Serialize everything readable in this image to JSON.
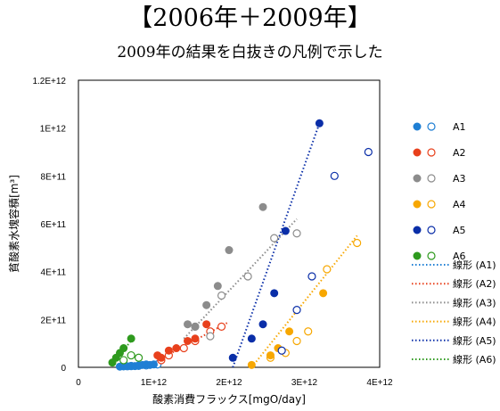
{
  "title": "【2006年＋2009年】",
  "subtitle": "2009年の結果を白抜きの凡例で示した",
  "chart_data": {
    "type": "scatter",
    "xlabel": "酸素消費フラックス[mgO/day]",
    "ylabel": "貧酸素水塊容積[m³]",
    "xlim": [
      0,
      4000000000000.0
    ],
    "ylim": [
      0,
      1200000000000.0
    ],
    "x_ticks": [
      {
        "value": 0,
        "label": "0"
      },
      {
        "value": 1000000000000.0,
        "label": "1E+12"
      },
      {
        "value": 2000000000000.0,
        "label": "2E+12"
      },
      {
        "value": 3000000000000.0,
        "label": "3E+12"
      },
      {
        "value": 4000000000000.0,
        "label": "4E+12"
      }
    ],
    "y_ticks": [
      {
        "value": 0,
        "label": "0"
      },
      {
        "value": 200000000000.0,
        "label": "2E+11"
      },
      {
        "value": 400000000000.0,
        "label": "4E+11"
      },
      {
        "value": 600000000000.0,
        "label": "6E+11"
      },
      {
        "value": 800000000000.0,
        "label": "8E+11"
      },
      {
        "value": 1000000000000.0,
        "label": "1E+12"
      },
      {
        "value": 1200000000000.0,
        "label": "1.2E+12"
      }
    ],
    "grid": false,
    "legend_position": "right",
    "series": [
      {
        "name": "A1",
        "color": "#1f7fd4",
        "filled": [
          [
            550000000000.0,
            3000000000.0
          ],
          [
            600000000000.0,
            5000000000.0
          ],
          [
            650000000000.0,
            4000000000.0
          ],
          [
            700000000000.0,
            6000000000.0
          ],
          [
            750000000000.0,
            5000000000.0
          ],
          [
            800000000000.0,
            8000000000.0
          ],
          [
            850000000000.0,
            10000000000.0
          ],
          [
            900000000000.0,
            12000000000.0
          ],
          [
            950000000000.0,
            10000000000.0
          ],
          [
            1000000000000.0,
            12000000000.0
          ]
        ],
        "open": [
          [
            600000000000.0,
            4000000000.0
          ],
          [
            700000000000.0,
            5000000000.0
          ],
          [
            800000000000.0,
            6000000000.0
          ],
          [
            900000000000.0,
            8000000000.0
          ],
          [
            1050000000000.0,
            12000000000.0
          ]
        ],
        "trend_label": "線形 (A1)",
        "trend": [
          [
            500000000000.0,
            0.0
          ],
          [
            1100000000000.0,
            15000000000.0
          ]
        ]
      },
      {
        "name": "A2",
        "color": "#e8401c",
        "filled": [
          [
            1050000000000.0,
            50000000000.0
          ],
          [
            1100000000000.0,
            40000000000.0
          ],
          [
            1200000000000.0,
            70000000000.0
          ],
          [
            1300000000000.0,
            80000000000.0
          ],
          [
            1450000000000.0,
            110000000000.0
          ],
          [
            1550000000000.0,
            120000000000.0
          ],
          [
            1700000000000.0,
            180000000000.0
          ]
        ],
        "open": [
          [
            1100000000000.0,
            30000000000.0
          ],
          [
            1200000000000.0,
            50000000000.0
          ],
          [
            1400000000000.0,
            80000000000.0
          ],
          [
            1550000000000.0,
            110000000000.0
          ],
          [
            1750000000000.0,
            150000000000.0
          ],
          [
            1900000000000.0,
            170000000000.0
          ]
        ],
        "trend_label": "線形 (A2)",
        "trend": [
          [
            1000000000000.0,
            20000000000.0
          ],
          [
            2000000000000.0,
            190000000000.0
          ]
        ]
      },
      {
        "name": "A3",
        "color": "#8c8c8c",
        "filled": [
          [
            1450000000000.0,
            180000000000.0
          ],
          [
            1550000000000.0,
            170000000000.0
          ],
          [
            1700000000000.0,
            260000000000.0
          ],
          [
            1850000000000.0,
            340000000000.0
          ],
          [
            2000000000000.0,
            490000000000.0
          ],
          [
            2450000000000.0,
            670000000000.0
          ]
        ],
        "open": [
          [
            1550000000000.0,
            170000000000.0
          ],
          [
            1750000000000.0,
            130000000000.0
          ],
          [
            1900000000000.0,
            300000000000.0
          ],
          [
            2250000000000.0,
            380000000000.0
          ],
          [
            2600000000000.0,
            540000000000.0
          ],
          [
            2900000000000.0,
            560000000000.0
          ]
        ],
        "trend_label": "線形 (A3)",
        "trend": [
          [
            1400000000000.0,
            120000000000.0
          ],
          [
            2900000000000.0,
            620000000000.0
          ]
        ]
      },
      {
        "name": "A4",
        "color": "#f7a700",
        "filled": [
          [
            2300000000000.0,
            10000000000.0
          ],
          [
            2550000000000.0,
            50000000000.0
          ],
          [
            2650000000000.0,
            80000000000.0
          ],
          [
            2800000000000.0,
            150000000000.0
          ],
          [
            3250000000000.0,
            310000000000.0
          ]
        ],
        "open": [
          [
            2550000000000.0,
            40000000000.0
          ],
          [
            2750000000000.0,
            60000000000.0
          ],
          [
            2900000000000.0,
            110000000000.0
          ],
          [
            3050000000000.0,
            150000000000.0
          ],
          [
            3300000000000.0,
            410000000000.0
          ],
          [
            3700000000000.0,
            520000000000.0
          ]
        ],
        "trend_label": "線形 (A4)",
        "trend": [
          [
            2300000000000.0,
            0.0
          ],
          [
            3700000000000.0,
            550000000000.0
          ]
        ]
      },
      {
        "name": "A5",
        "color": "#0a2ea8",
        "filled": [
          [
            2050000000000.0,
            40000000000.0
          ],
          [
            2300000000000.0,
            120000000000.0
          ],
          [
            2450000000000.0,
            180000000000.0
          ],
          [
            2600000000000.0,
            310000000000.0
          ],
          [
            2750000000000.0,
            570000000000.0
          ],
          [
            3200000000000.0,
            1020000000000.0
          ]
        ],
        "open": [
          [
            2700000000000.0,
            70000000000.0
          ],
          [
            2900000000000.0,
            240000000000.0
          ],
          [
            3100000000000.0,
            380000000000.0
          ],
          [
            3400000000000.0,
            800000000000.0
          ],
          [
            3850000000000.0,
            900000000000.0
          ]
        ],
        "trend_label": "線形 (A5)",
        "trend": [
          [
            2050000000000.0,
            0.0
          ],
          [
            3200000000000.0,
            1020000000000.0
          ]
        ]
      },
      {
        "name": "A6",
        "color": "#2e9a1e",
        "filled": [
          [
            450000000000.0,
            20000000000.0
          ],
          [
            500000000000.0,
            40000000000.0
          ],
          [
            550000000000.0,
            60000000000.0
          ],
          [
            600000000000.0,
            80000000000.0
          ],
          [
            700000000000.0,
            120000000000.0
          ]
        ],
        "open": [
          [
            600000000000.0,
            30000000000.0
          ],
          [
            700000000000.0,
            50000000000.0
          ],
          [
            800000000000.0,
            40000000000.0
          ]
        ],
        "trend_label": "線形 (A6)",
        "trend": [
          [
            450000000000.0,
            10000000000.0
          ],
          [
            720000000000.0,
            120000000000.0
          ]
        ]
      }
    ]
  }
}
